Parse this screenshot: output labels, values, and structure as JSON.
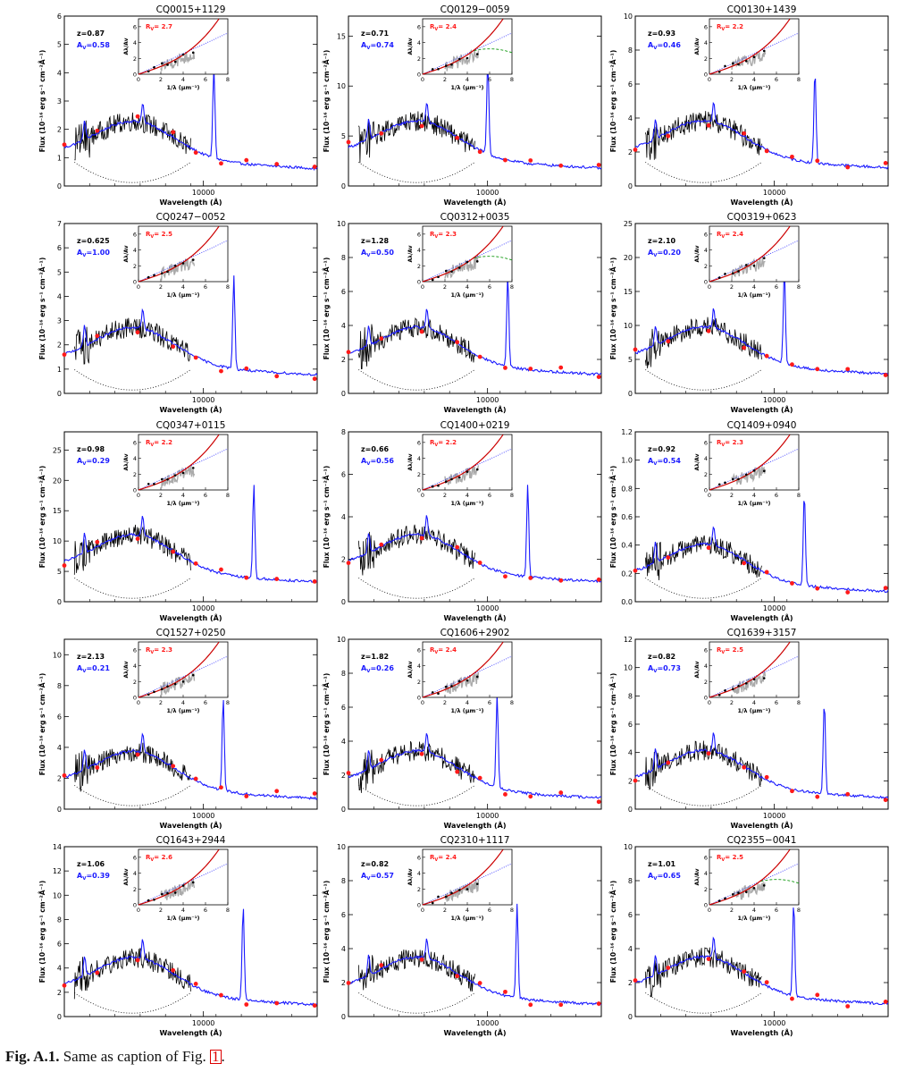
{
  "figure": {
    "caption_label": "Fig. A.1.",
    "caption_text": " Same as caption of Fig. ",
    "caption_ref": "1",
    "caption_end": ".",
    "colors": {
      "observed": "#000000",
      "model": "#1a1aff",
      "photometry": "#ff1a1a",
      "extinction_fit": "#cc0000",
      "mw_curve": "#2222ff",
      "smc_curve": "#119911",
      "inset_points": "#000000",
      "inset_spectrum": "#aaaaaa"
    }
  },
  "chart_data": [
    {
      "type": "line",
      "title": "CQ0015+1129",
      "z_label": "z=0.87",
      "av_label": "A",
      "av_sub": "V",
      "av_value": "=0.58",
      "rv_label": "R",
      "rv_sub": "V",
      "rv_value": "= 2.7",
      "ylim": [
        0,
        6
      ],
      "yticks": [
        "0",
        "1",
        "2",
        "3",
        "4",
        "5",
        "6"
      ],
      "xlabel": "Wavelength (Å)",
      "xtick": "10000",
      "ylabel": "Flux (10⁻¹⁶ erg s⁻¹ cm⁻²Å⁻¹)",
      "inset_xlabel": "1/λ (μm⁻¹)",
      "inset_ylabel": "Aλ/Av",
      "inset_xticks": [
        "0",
        "2",
        "4",
        "6",
        "8"
      ],
      "inset_yticks": [
        "0",
        "2",
        "4",
        "6"
      ],
      "inset_green": false
    },
    {
      "type": "line",
      "title": "CQ0129−0059",
      "z_label": "z=0.71",
      "av_label": "A",
      "av_sub": "V",
      "av_value": "=0.74",
      "rv_label": "R",
      "rv_sub": "V",
      "rv_value": "= 2.4",
      "ylim": [
        0,
        17
      ],
      "yticks": [
        "0",
        "5",
        "10",
        "15"
      ],
      "xlabel": "Wavelength (Å)",
      "xtick": "10000",
      "ylabel": "Flux (10⁻¹⁶ erg s⁻¹ cm⁻²Å⁻¹)",
      "inset_xlabel": "1/λ (μm⁻¹)",
      "inset_ylabel": "Aλ/Av",
      "inset_xticks": [
        "0",
        "2",
        "4",
        "6",
        "8"
      ],
      "inset_yticks": [
        "0",
        "2",
        "4",
        "6"
      ],
      "inset_green": true
    },
    {
      "type": "line",
      "title": "CQ0130+1439",
      "z_label": "z=0.93",
      "av_label": "A",
      "av_sub": "V",
      "av_value": "=0.46",
      "rv_label": "R",
      "rv_sub": "V",
      "rv_value": "= 2.2",
      "ylim": [
        0,
        10
      ],
      "yticks": [
        "0",
        "2",
        "4",
        "6",
        "8",
        "10"
      ],
      "xlabel": "Wavelength (Å)",
      "xtick": "10000",
      "ylabel": "Flux (10⁻¹⁶ erg s⁻¹ cm⁻²Å⁻¹)",
      "inset_xlabel": "1/λ (μm⁻¹)",
      "inset_ylabel": "Aλ/Av",
      "inset_xticks": [
        "0",
        "2",
        "4",
        "6",
        "8"
      ],
      "inset_yticks": [
        "0",
        "2",
        "4",
        "6"
      ],
      "inset_green": false
    },
    {
      "type": "line",
      "title": "CQ0247−0052",
      "z_label": "z=0.625",
      "av_label": "A",
      "av_sub": "V",
      "av_value": "=1.00",
      "rv_label": "R",
      "rv_sub": "V",
      "rv_value": "= 2.5",
      "ylim": [
        0,
        7
      ],
      "yticks": [
        "0",
        "1",
        "2",
        "3",
        "4",
        "5",
        "6",
        "7"
      ],
      "xlabel": "Wavelength (Å)",
      "xtick": "10000",
      "ylabel": "Flux (10⁻¹⁶ erg s⁻¹ cm⁻²Å⁻¹)",
      "inset_xlabel": "1/λ (μm⁻¹)",
      "inset_ylabel": "Aλ/Av",
      "inset_xticks": [
        "0",
        "2",
        "4",
        "6",
        "8"
      ],
      "inset_yticks": [
        "0",
        "2",
        "4",
        "6"
      ],
      "inset_green": false
    },
    {
      "type": "line",
      "title": "CQ0312+0035",
      "z_label": "z=1.28",
      "av_label": "A",
      "av_sub": "V",
      "av_value": "=0.50",
      "rv_label": "R",
      "rv_sub": "V",
      "rv_value": "= 2.3",
      "ylim": [
        0,
        10
      ],
      "yticks": [
        "0",
        "2",
        "4",
        "6",
        "8",
        "10"
      ],
      "xlabel": "Wavelength (Å)",
      "xtick": "10000",
      "ylabel": "Flux (10⁻¹⁶ erg s⁻¹ cm⁻²Å⁻¹)",
      "inset_xlabel": "1/λ (μm⁻¹)",
      "inset_ylabel": "Aλ/Av",
      "inset_xticks": [
        "0",
        "2",
        "4",
        "6",
        "8"
      ],
      "inset_yticks": [
        "0",
        "2",
        "4",
        "6"
      ],
      "inset_green": true
    },
    {
      "type": "line",
      "title": "CQ0319+0623",
      "z_label": "z=2.10",
      "av_label": "A",
      "av_sub": "V",
      "av_value": "=0.20",
      "rv_label": "R",
      "rv_sub": "V",
      "rv_value": "= 2.4",
      "ylim": [
        0,
        25
      ],
      "yticks": [
        "0",
        "5",
        "10",
        "15",
        "20",
        "25"
      ],
      "xlabel": "Wavelength (Å)",
      "xtick": "10000",
      "ylabel": "Flux (10⁻¹⁶ erg s⁻¹ cm⁻²Å⁻¹)",
      "inset_xlabel": "1/λ (μm⁻¹)",
      "inset_ylabel": "Aλ/Av",
      "inset_xticks": [
        "0",
        "2",
        "4",
        "6",
        "8"
      ],
      "inset_yticks": [
        "0",
        "2",
        "4",
        "6"
      ],
      "inset_green": false
    },
    {
      "type": "line",
      "title": "CQ0347+0115",
      "z_label": "z=0.98",
      "av_label": "A",
      "av_sub": "V",
      "av_value": "=0.29",
      "rv_label": "R",
      "rv_sub": "V",
      "rv_value": "= 2.2",
      "ylim": [
        0,
        28
      ],
      "yticks": [
        "0",
        "5",
        "10",
        "15",
        "20",
        "25"
      ],
      "xlabel": "Wavelength (Å)",
      "xtick": "10000",
      "ylabel": "Flux (10⁻¹⁶ erg s⁻¹ cm⁻²Å⁻¹)",
      "inset_xlabel": "1/λ (μm⁻¹)",
      "inset_ylabel": "Aλ/Av",
      "inset_xticks": [
        "0",
        "2",
        "4",
        "6",
        "8"
      ],
      "inset_yticks": [
        "0",
        "2",
        "4",
        "6"
      ],
      "inset_green": false
    },
    {
      "type": "line",
      "title": "CQ1400+0219",
      "z_label": "z=0.66",
      "av_label": "A",
      "av_sub": "V",
      "av_value": "=0.56",
      "rv_label": "R",
      "rv_sub": "V",
      "rv_value": "= 2.2",
      "ylim": [
        0,
        8
      ],
      "yticks": [
        "0",
        "2",
        "4",
        "6",
        "8"
      ],
      "xlabel": "Wavelength (Å)",
      "xtick": "10000",
      "ylabel": "Flux (10⁻¹⁶ erg s⁻¹ cm⁻²Å⁻¹)",
      "inset_xlabel": "1/λ (μm⁻¹)",
      "inset_ylabel": "Aλ/Av",
      "inset_xticks": [
        "0",
        "2",
        "4",
        "6",
        "8"
      ],
      "inset_yticks": [
        "0",
        "2",
        "4",
        "6"
      ],
      "inset_green": false
    },
    {
      "type": "line",
      "title": "CQ1409+0940",
      "z_label": "z=0.92",
      "av_label": "A",
      "av_sub": "V",
      "av_value": "=0.54",
      "rv_label": "R",
      "rv_sub": "V",
      "rv_value": "= 2.3",
      "ylim": [
        0,
        1.2
      ],
      "yticks": [
        "0.0",
        "0.2",
        "0.4",
        "0.6",
        "0.8",
        "1.0",
        "1.2"
      ],
      "xlabel": "Wavelength (Å)",
      "xtick": "10000",
      "ylabel": "Flux (10⁻¹⁶ erg s⁻¹ cm⁻²Å⁻¹)",
      "inset_xlabel": "1/λ (μm⁻¹)",
      "inset_ylabel": "Aλ/Av",
      "inset_xticks": [
        "0",
        "2",
        "4",
        "6",
        "8"
      ],
      "inset_yticks": [
        "0",
        "2",
        "4",
        "6"
      ],
      "inset_green": false
    },
    {
      "type": "line",
      "title": "CQ1527+0250",
      "z_label": "z=2.13",
      "av_label": "A",
      "av_sub": "V",
      "av_value": "=0.21",
      "rv_label": "R",
      "rv_sub": "V",
      "rv_value": "= 2.3",
      "ylim": [
        0,
        11
      ],
      "yticks": [
        "0",
        "2",
        "4",
        "6",
        "8",
        "10"
      ],
      "xlabel": "Wavelength (Å)",
      "xtick": "10000",
      "ylabel": "Flux (10⁻¹⁶ erg s⁻¹ cm⁻²Å⁻¹)",
      "inset_xlabel": "1/λ (μm⁻¹)",
      "inset_ylabel": "Aλ/Av",
      "inset_xticks": [
        "0",
        "2",
        "4",
        "6",
        "8"
      ],
      "inset_yticks": [
        "0",
        "2",
        "4",
        "6"
      ],
      "inset_green": false
    },
    {
      "type": "line",
      "title": "CQ1606+2902",
      "z_label": "z=1.82",
      "av_label": "A",
      "av_sub": "V",
      "av_value": "=0.26",
      "rv_label": "R",
      "rv_sub": "V",
      "rv_value": "= 2.4",
      "ylim": [
        0,
        10
      ],
      "yticks": [
        "0",
        "2",
        "4",
        "6",
        "8",
        "10"
      ],
      "xlabel": "Wavelength (Å)",
      "xtick": "10000",
      "ylabel": "Flux (10⁻¹⁶ erg s⁻¹ cm⁻²Å⁻¹)",
      "inset_xlabel": "1/λ (μm⁻¹)",
      "inset_ylabel": "Aλ/Av",
      "inset_xticks": [
        "0",
        "2",
        "4",
        "6",
        "8"
      ],
      "inset_yticks": [
        "0",
        "2",
        "4",
        "6"
      ],
      "inset_green": false
    },
    {
      "type": "line",
      "title": "CQ1639+3157",
      "z_label": "z=0.82",
      "av_label": "A",
      "av_sub": "V",
      "av_value": "=0.73",
      "rv_label": "R",
      "rv_sub": "V",
      "rv_value": "= 2.5",
      "ylim": [
        0,
        12
      ],
      "yticks": [
        "0",
        "2",
        "4",
        "6",
        "8",
        "10",
        "12"
      ],
      "xlabel": "Wavelength (Å)",
      "xtick": "10000",
      "ylabel": "Flux (10⁻¹⁶ erg s⁻¹ cm⁻²Å⁻¹)",
      "inset_xlabel": "1/λ (μm⁻¹)",
      "inset_ylabel": "Aλ/Av",
      "inset_xticks": [
        "0",
        "2",
        "4",
        "6",
        "8"
      ],
      "inset_yticks": [
        "0",
        "2",
        "4",
        "6"
      ],
      "inset_green": false
    },
    {
      "type": "line",
      "title": "CQ1643+2944",
      "z_label": "z=1.06",
      "av_label": "A",
      "av_sub": "V",
      "av_value": "=0.39",
      "rv_label": "R",
      "rv_sub": "V",
      "rv_value": "= 2.6",
      "ylim": [
        0,
        14
      ],
      "yticks": [
        "0",
        "2",
        "4",
        "6",
        "8",
        "10",
        "12",
        "14"
      ],
      "xlabel": "Wavelength (Å)",
      "xtick": "10000",
      "ylabel": "Flux (10⁻¹⁶ erg s⁻¹ cm⁻²Å⁻¹)",
      "inset_xlabel": "1/λ (μm⁻¹)",
      "inset_ylabel": "Aλ/Av",
      "inset_xticks": [
        "0",
        "2",
        "4",
        "6",
        "8"
      ],
      "inset_yticks": [
        "0",
        "2",
        "4",
        "6"
      ],
      "inset_green": false
    },
    {
      "type": "line",
      "title": "CQ2310+1117",
      "z_label": "z=0.82",
      "av_label": "A",
      "av_sub": "V",
      "av_value": "=0.57",
      "rv_label": "R",
      "rv_sub": "V",
      "rv_value": "= 2.4",
      "ylim": [
        0,
        10
      ],
      "yticks": [
        "0",
        "2",
        "4",
        "6",
        "8",
        "10"
      ],
      "xlabel": "Wavelength (Å)",
      "xtick": "10000",
      "ylabel": "Flux (10⁻¹⁶ erg s⁻¹ cm⁻²Å⁻¹)",
      "inset_xlabel": "1/λ (μm⁻¹)",
      "inset_ylabel": "Aλ/Av",
      "inset_xticks": [
        "0",
        "2",
        "4",
        "6",
        "8"
      ],
      "inset_yticks": [
        "0",
        "2",
        "4",
        "6"
      ],
      "inset_green": false
    },
    {
      "type": "line",
      "title": "CQ2355−0041",
      "z_label": "z=1.01",
      "av_label": "A",
      "av_sub": "V",
      "av_value": "=0.65",
      "rv_label": "R",
      "rv_sub": "V",
      "rv_value": "= 2.5",
      "ylim": [
        0,
        10
      ],
      "yticks": [
        "0",
        "2",
        "4",
        "6",
        "8",
        "10"
      ],
      "xlabel": "Wavelength (Å)",
      "xtick": "10000",
      "ylabel": "Flux (10⁻¹⁶ erg s⁻¹ cm⁻²Å⁻¹)",
      "inset_xlabel": "1/λ (μm⁻¹)",
      "inset_ylabel": "Aλ/Av",
      "inset_xticks": [
        "0",
        "2",
        "4",
        "6",
        "8"
      ],
      "inset_yticks": [
        "0",
        "2",
        "4",
        "6"
      ],
      "inset_green": true
    }
  ]
}
